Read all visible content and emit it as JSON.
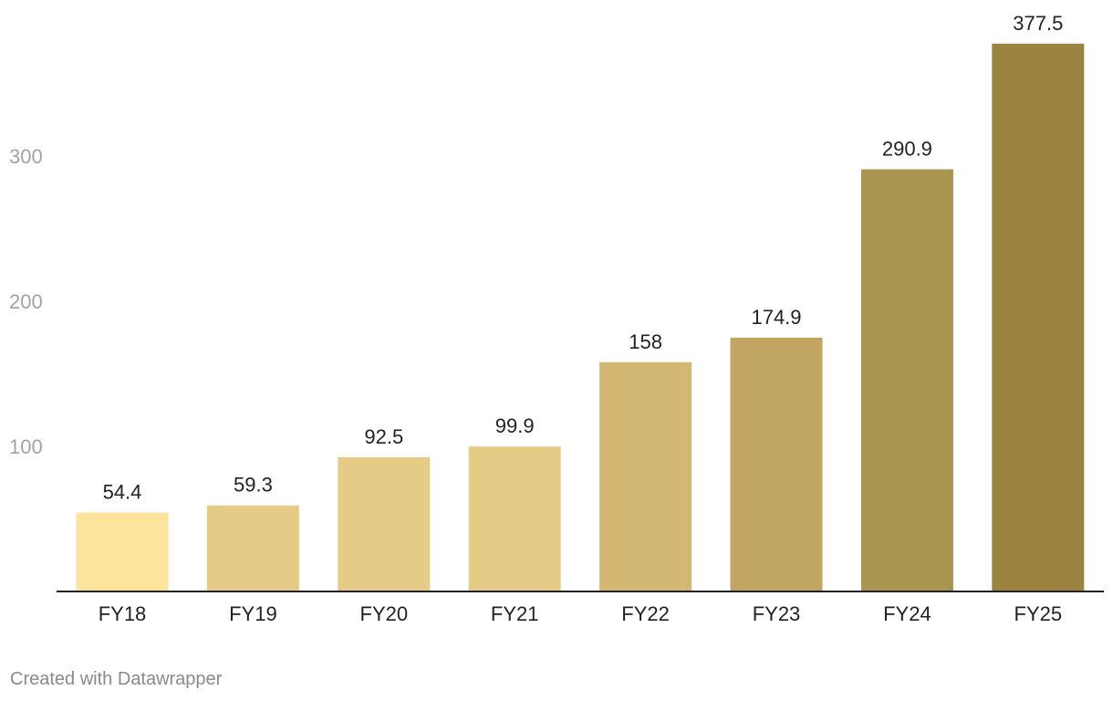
{
  "chart_data": {
    "type": "bar",
    "categories": [
      "FY18",
      "FY19",
      "FY20",
      "FY21",
      "FY22",
      "FY23",
      "FY24",
      "FY25"
    ],
    "values": [
      54.4,
      59.3,
      92.5,
      99.9,
      158,
      174.9,
      290.9,
      377.5
    ],
    "value_labels": [
      "54.4",
      "59.3",
      "92.5",
      "99.9",
      "158",
      "174.9",
      "290.9",
      "377.5"
    ],
    "title": "",
    "xlabel": "",
    "ylabel": "",
    "ylim": [
      0,
      385
    ],
    "yticks": [
      100,
      200,
      300
    ],
    "grid": false,
    "legend": "none",
    "colors": [
      "#fce49c",
      "#e5cc86",
      "#e5cc86",
      "#e5cc86",
      "#d3b873",
      "#c0a662",
      "#aa9550",
      "#9a8440"
    ]
  },
  "footer": {
    "credit": "Created with Datawrapper"
  }
}
